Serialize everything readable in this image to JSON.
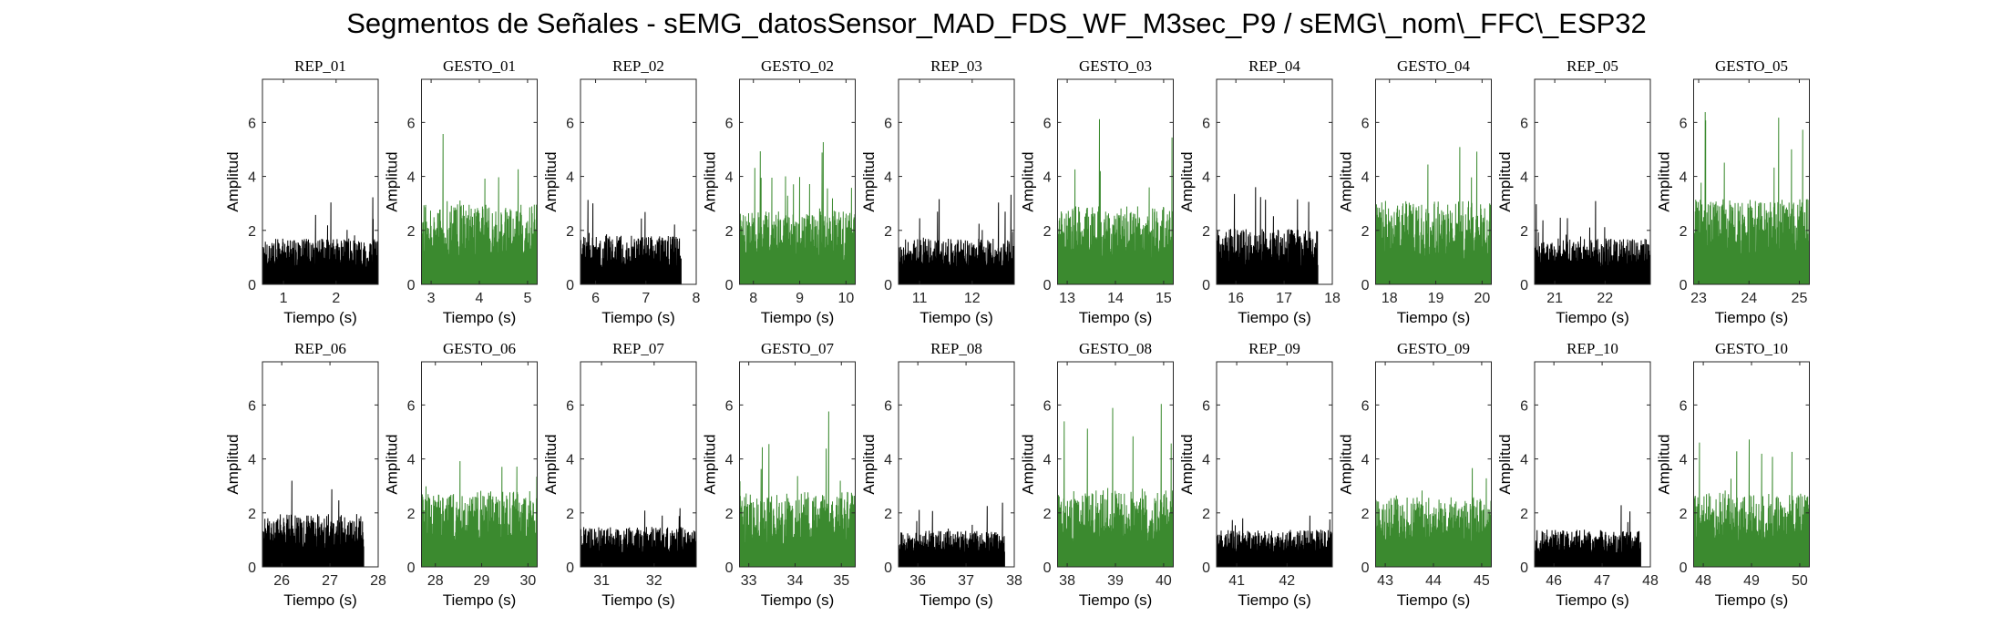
{
  "title": "Segmentos de Señales - sEMG_datosSensor_MAD_FDS_WF_M3sec_P9 / sEMG\\_nom\\_FFC\\_ESP32",
  "colors": {
    "rep": "#000000",
    "gesto": "#3b8a2f",
    "axis": "#262626"
  },
  "chart_data": [
    {
      "type": "area",
      "title": "REP_01",
      "xlabel": "Tiempo (s)",
      "ylabel": "Amplitud",
      "xlim": [
        0.6,
        2.8
      ],
      "ylim": [
        0,
        7.6
      ],
      "xticks": [
        1,
        2
      ],
      "yticks": [
        0,
        2,
        4,
        6
      ],
      "series": [
        {
          "name": "REP_01",
          "color": "#000000",
          "x_range": [
            0.6,
            2.8
          ],
          "baseline": 1.0,
          "spread": 1.1,
          "peak": 3.8
        }
      ]
    },
    {
      "type": "area",
      "title": "GESTO_01",
      "xlabel": "Tiempo (s)",
      "ylabel": "Amplitud",
      "xlim": [
        2.8,
        5.2
      ],
      "ylim": [
        0,
        7.6
      ],
      "xticks": [
        3,
        4,
        5
      ],
      "yticks": [
        0,
        2,
        4,
        6
      ],
      "series": [
        {
          "name": "GESTO_01",
          "color": "#3b8a2f",
          "x_range": [
            2.8,
            5.2
          ],
          "baseline": 1.6,
          "spread": 2.0,
          "peak": 6.5
        }
      ]
    },
    {
      "type": "area",
      "title": "REP_02",
      "xlabel": "Tiempo (s)",
      "ylabel": "Amplitud",
      "xlim": [
        5.7,
        8
      ],
      "ylim": [
        0,
        7.6
      ],
      "xticks": [
        6,
        7,
        8
      ],
      "yticks": [
        0,
        2,
        4,
        6
      ],
      "series": [
        {
          "name": "REP_02",
          "color": "#000000",
          "x_range": [
            5.7,
            7.7
          ],
          "baseline": 1.0,
          "spread": 1.2,
          "peak": 3.5
        }
      ]
    },
    {
      "type": "area",
      "title": "GESTO_02",
      "xlabel": "Tiempo (s)",
      "ylabel": "Amplitud",
      "xlim": [
        7.7,
        10.2
      ],
      "ylim": [
        0,
        7.6
      ],
      "xticks": [
        8,
        9,
        10
      ],
      "yticks": [
        0,
        2,
        4,
        6
      ],
      "series": [
        {
          "name": "GESTO_02",
          "color": "#3b8a2f",
          "x_range": [
            7.7,
            10.2
          ],
          "baseline": 1.5,
          "spread": 1.8,
          "peak": 5.7
        }
      ]
    },
    {
      "type": "area",
      "title": "REP_03",
      "xlabel": "Tiempo (s)",
      "ylabel": "Amplitud",
      "xlim": [
        10.6,
        12.8
      ],
      "ylim": [
        0,
        7.6
      ],
      "xticks": [
        11,
        12
      ],
      "yticks": [
        0,
        2,
        4,
        6
      ],
      "series": [
        {
          "name": "REP_03",
          "color": "#000000",
          "x_range": [
            10.6,
            12.8
          ],
          "baseline": 1.0,
          "spread": 1.1,
          "peak": 3.5
        }
      ]
    },
    {
      "type": "area",
      "title": "GESTO_03",
      "xlabel": "Tiempo (s)",
      "ylabel": "Amplitud",
      "xlim": [
        12.8,
        15.2
      ],
      "ylim": [
        0,
        7.6
      ],
      "xticks": [
        13,
        14,
        15
      ],
      "yticks": [
        0,
        2,
        4,
        6
      ],
      "series": [
        {
          "name": "GESTO_03",
          "color": "#3b8a2f",
          "x_range": [
            12.8,
            15.2
          ],
          "baseline": 1.5,
          "spread": 2.0,
          "peak": 6.5
        }
      ]
    },
    {
      "type": "area",
      "title": "REP_04",
      "xlabel": "Tiempo (s)",
      "ylabel": "Amplitud",
      "xlim": [
        15.6,
        18
      ],
      "ylim": [
        0,
        7.6
      ],
      "xticks": [
        16,
        17,
        18
      ],
      "yticks": [
        0,
        2,
        4,
        6
      ],
      "series": [
        {
          "name": "REP_04",
          "color": "#000000",
          "x_range": [
            15.6,
            17.7
          ],
          "baseline": 1.1,
          "spread": 1.4,
          "peak": 4.0
        }
      ]
    },
    {
      "type": "area",
      "title": "GESTO_04",
      "xlabel": "Tiempo (s)",
      "ylabel": "Amplitud",
      "xlim": [
        17.7,
        20.2
      ],
      "ylim": [
        0,
        7.6
      ],
      "xticks": [
        18,
        19,
        20
      ],
      "yticks": [
        0,
        2,
        4,
        6
      ],
      "series": [
        {
          "name": "GESTO_04",
          "color": "#3b8a2f",
          "x_range": [
            17.7,
            20.2
          ],
          "baseline": 1.5,
          "spread": 2.2,
          "peak": 6.7
        }
      ]
    },
    {
      "type": "area",
      "title": "REP_05",
      "xlabel": "Tiempo (s)",
      "ylabel": "Amplitud",
      "xlim": [
        20.6,
        22.9
      ],
      "ylim": [
        0,
        7.6
      ],
      "xticks": [
        21,
        22
      ],
      "yticks": [
        0,
        2,
        4,
        6
      ],
      "series": [
        {
          "name": "REP_05",
          "color": "#000000",
          "x_range": [
            20.6,
            22.9
          ],
          "baseline": 1.0,
          "spread": 1.1,
          "peak": 3.1
        }
      ]
    },
    {
      "type": "area",
      "title": "GESTO_05",
      "xlabel": "Tiempo (s)",
      "ylabel": "Amplitud",
      "xlim": [
        22.9,
        25.2
      ],
      "ylim": [
        0,
        7.6
      ],
      "xticks": [
        23,
        24,
        25
      ],
      "yticks": [
        0,
        2,
        4,
        6
      ],
      "series": [
        {
          "name": "GESTO_05",
          "color": "#3b8a2f",
          "x_range": [
            22.9,
            25.2
          ],
          "baseline": 1.6,
          "spread": 2.2,
          "peak": 6.4
        }
      ]
    },
    {
      "type": "area",
      "title": "REP_06",
      "xlabel": "Tiempo (s)",
      "ylabel": "Amplitud",
      "xlim": [
        25.6,
        28
      ],
      "ylim": [
        0,
        7.6
      ],
      "xticks": [
        26,
        27,
        28
      ],
      "yticks": [
        0,
        2,
        4,
        6
      ],
      "series": [
        {
          "name": "REP_06",
          "color": "#000000",
          "x_range": [
            25.6,
            27.7
          ],
          "baseline": 1.1,
          "spread": 1.3,
          "peak": 3.2
        }
      ]
    },
    {
      "type": "area",
      "title": "GESTO_06",
      "xlabel": "Tiempo (s)",
      "ylabel": "Amplitud",
      "xlim": [
        27.7,
        30.2
      ],
      "ylim": [
        0,
        7.6
      ],
      "xticks": [
        28,
        29,
        30
      ],
      "yticks": [
        0,
        2,
        4,
        6
      ],
      "series": [
        {
          "name": "GESTO_06",
          "color": "#3b8a2f",
          "x_range": [
            27.7,
            30.2
          ],
          "baseline": 1.4,
          "spread": 2.0,
          "peak": 5.3
        }
      ]
    },
    {
      "type": "area",
      "title": "REP_07",
      "xlabel": "Tiempo (s)",
      "ylabel": "Amplitud",
      "xlim": [
        30.6,
        32.8
      ],
      "ylim": [
        0,
        7.6
      ],
      "xticks": [
        31,
        32
      ],
      "yticks": [
        0,
        2,
        4,
        6
      ],
      "series": [
        {
          "name": "REP_07",
          "color": "#000000",
          "x_range": [
            30.6,
            32.8
          ],
          "baseline": 0.8,
          "spread": 1.0,
          "peak": 2.9
        }
      ]
    },
    {
      "type": "area",
      "title": "GESTO_07",
      "xlabel": "Tiempo (s)",
      "ylabel": "Amplitud",
      "xlim": [
        32.8,
        35.3
      ],
      "ylim": [
        0,
        7.6
      ],
      "xticks": [
        33,
        34,
        35
      ],
      "yticks": [
        0,
        2,
        4,
        6
      ],
      "series": [
        {
          "name": "GESTO_07",
          "color": "#3b8a2f",
          "x_range": [
            32.8,
            35.3
          ],
          "baseline": 1.3,
          "spread": 2.0,
          "peak": 5.8
        }
      ]
    },
    {
      "type": "area",
      "title": "REP_08",
      "xlabel": "Tiempo (s)",
      "ylabel": "Amplitud",
      "xlim": [
        35.6,
        38
      ],
      "ylim": [
        0,
        7.6
      ],
      "xticks": [
        36,
        37,
        38
      ],
      "yticks": [
        0,
        2,
        4,
        6
      ],
      "series": [
        {
          "name": "REP_08",
          "color": "#000000",
          "x_range": [
            35.6,
            37.8
          ],
          "baseline": 0.9,
          "spread": 0.8,
          "peak": 2.4
        }
      ]
    },
    {
      "type": "area",
      "title": "GESTO_08",
      "xlabel": "Tiempo (s)",
      "ylabel": "Amplitud",
      "xlim": [
        37.8,
        40.2
      ],
      "ylim": [
        0,
        7.6
      ],
      "xticks": [
        38,
        39,
        40
      ],
      "yticks": [
        0,
        2,
        4,
        6
      ],
      "series": [
        {
          "name": "GESTO_08",
          "color": "#3b8a2f",
          "x_range": [
            37.8,
            40.2
          ],
          "baseline": 1.4,
          "spread": 2.0,
          "peak": 6.3
        }
      ]
    },
    {
      "type": "area",
      "title": "REP_09",
      "xlabel": "Tiempo (s)",
      "ylabel": "Amplitud",
      "xlim": [
        40.6,
        42.9
      ],
      "ylim": [
        0,
        7.6
      ],
      "xticks": [
        41,
        42
      ],
      "yticks": [
        0,
        2,
        4,
        6
      ],
      "series": [
        {
          "name": "REP_09",
          "color": "#000000",
          "x_range": [
            40.6,
            42.9
          ],
          "baseline": 0.8,
          "spread": 0.9,
          "peak": 2.0
        }
      ]
    },
    {
      "type": "area",
      "title": "GESTO_09",
      "xlabel": "Tiempo (s)",
      "ylabel": "Amplitud",
      "xlim": [
        42.8,
        45.2
      ],
      "ylim": [
        0,
        7.6
      ],
      "xticks": [
        43,
        44,
        45
      ],
      "yticks": [
        0,
        2,
        4,
        6
      ],
      "series": [
        {
          "name": "GESTO_09",
          "color": "#3b8a2f",
          "x_range": [
            42.8,
            45.2
          ],
          "baseline": 1.3,
          "spread": 1.8,
          "peak": 4.6
        }
      ]
    },
    {
      "type": "area",
      "title": "REP_10",
      "xlabel": "Tiempo (s)",
      "ylabel": "Amplitud",
      "xlim": [
        45.6,
        48
      ],
      "ylim": [
        0,
        7.6
      ],
      "xticks": [
        46,
        47,
        48
      ],
      "yticks": [
        0,
        2,
        4,
        6
      ],
      "series": [
        {
          "name": "REP_10",
          "color": "#000000",
          "x_range": [
            45.6,
            47.8
          ],
          "baseline": 0.8,
          "spread": 0.9,
          "peak": 2.4
        }
      ]
    },
    {
      "type": "area",
      "title": "GESTO_10",
      "xlabel": "Tiempo (s)",
      "ylabel": "Amplitud",
      "xlim": [
        47.8,
        50.2
      ],
      "ylim": [
        0,
        7.6
      ],
      "xticks": [
        48,
        49,
        50
      ],
      "yticks": [
        0,
        2,
        4,
        6
      ],
      "series": [
        {
          "name": "GESTO_10",
          "color": "#3b8a2f",
          "x_range": [
            47.8,
            50.2
          ],
          "baseline": 1.4,
          "spread": 1.9,
          "peak": 5.5
        }
      ]
    }
  ]
}
